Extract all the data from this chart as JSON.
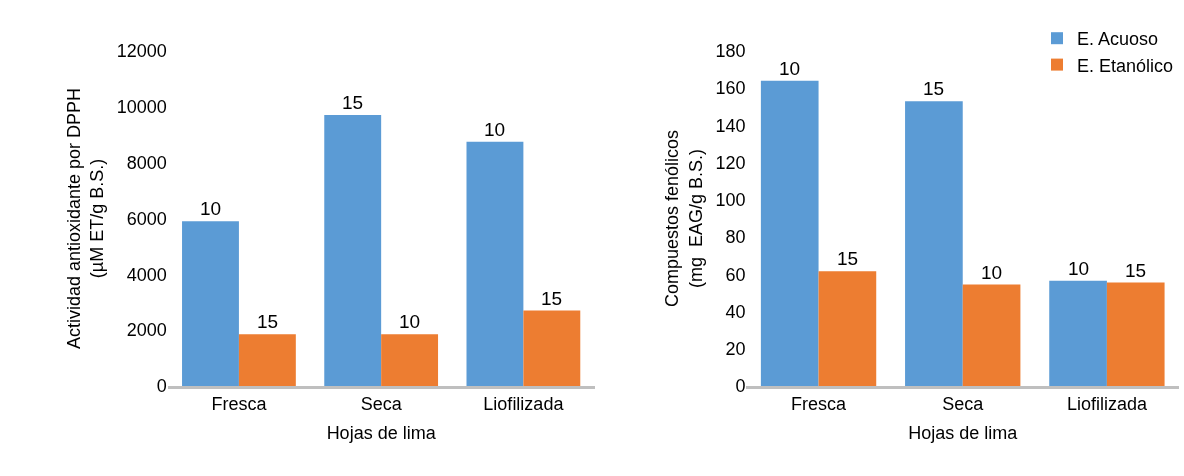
{
  "chart_data": [
    {
      "type": "bar",
      "xlabel": "Hojas de lima",
      "ylabel": "Actividad antioxidante por DPPH\n(µM ET/g B.S.)",
      "categories": [
        "Fresca",
        "Seca",
        "Liofilizada"
      ],
      "series": [
        {
          "color": "#5b9bd5",
          "values": [
            5900,
            9700,
            8750
          ]
        },
        {
          "color": "#ed7d31",
          "values": [
            1850,
            1850,
            2700
          ]
        }
      ],
      "ylim": [
        0,
        12000
      ],
      "yticks": [
        0,
        2000,
        4000,
        6000,
        8000,
        10000,
        12000
      ],
      "annotations": [
        {
          "text": "10",
          "x": "Fresca",
          "y": 5900
        },
        {
          "text": "15",
          "x": "Seca",
          "y": 9700
        },
        {
          "text": "10",
          "x": "Liofilizada",
          "y": 8750
        },
        {
          "text": "15",
          "x": "Fresca",
          "y": 1850
        },
        {
          "text": "10",
          "x": "Seca",
          "y": 1850
        },
        {
          "text": "15",
          "x": "Liofilizada",
          "y": 2700
        }
      ]
    },
    {
      "type": "bar",
      "xlabel": "Hojas de lima",
      "ylabel": "Compuestos fenólicos\n(mg  EAG/g B.S.)",
      "categories": [
        "Fresca",
        "Seca",
        "Liofilizada"
      ],
      "series": [
        {
          "name": "E. Acuoso",
          "color": "#5b9bd5",
          "values": [
            164,
            153,
            56.6
          ]
        },
        {
          "name": "E. Etanólico",
          "color": "#ed7d31",
          "values": [
            61.6,
            54.5,
            55.6
          ]
        }
      ],
      "ylim": [
        0,
        180
      ],
      "yticks": [
        0,
        20,
        40,
        60,
        80,
        100,
        120,
        140,
        160,
        180
      ],
      "legend": "top right",
      "annotations": [
        {
          "text": "10",
          "x": "Fresca",
          "y": 164
        },
        {
          "text": "15",
          "x": "Seca",
          "y": 153
        },
        {
          "text": "10",
          "x": "Liofilizada",
          "y": 56.6
        },
        {
          "text": "15",
          "x": "Fresca",
          "y": 61.6
        },
        {
          "text": "10",
          "x": "Seca",
          "y": 54.5
        },
        {
          "text": "15",
          "x": "Liofilizada",
          "y": 55.6
        }
      ]
    }
  ]
}
